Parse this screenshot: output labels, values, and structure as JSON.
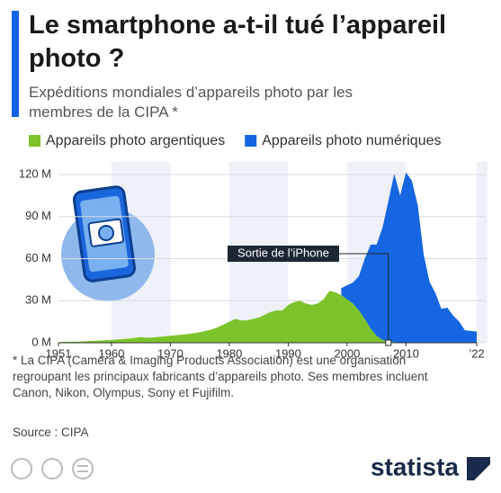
{
  "chart_data": {
    "type": "area",
    "stacked": true,
    "title": "Le smartphone a-t-il tué l’appareil photo ?",
    "subtitle": "Expéditions mondiales d’appareils photo par les membres de la CIPA *",
    "x": [
      1951,
      1952,
      1953,
      1954,
      1955,
      1956,
      1957,
      1958,
      1959,
      1960,
      1961,
      1962,
      1963,
      1964,
      1965,
      1966,
      1967,
      1968,
      1969,
      1970,
      1971,
      1972,
      1973,
      1974,
      1975,
      1976,
      1977,
      1978,
      1979,
      1980,
      1981,
      1982,
      1983,
      1984,
      1985,
      1986,
      1987,
      1988,
      1989,
      1990,
      1991,
      1992,
      1993,
      1994,
      1995,
      1996,
      1997,
      1998,
      1999,
      2000,
      2001,
      2002,
      2003,
      2004,
      2005,
      2006,
      2007,
      2008,
      2009,
      2010,
      2011,
      2012,
      2013,
      2014,
      2015,
      2016,
      2017,
      2018,
      2019,
      2020,
      2021,
      2022
    ],
    "series": [
      {
        "name": "Appareils photo argentiques",
        "color": "#7dc42c",
        "values": [
          0.5,
          0.6,
          0.7,
          0.8,
          1,
          1.2,
          1.4,
          1.6,
          1.8,
          2,
          2.3,
          2.7,
          3,
          3.5,
          4,
          3.6,
          3.8,
          4.2,
          4.6,
          5,
          5.4,
          5.8,
          6.2,
          6.8,
          7.5,
          8.5,
          9.5,
          11,
          13,
          15,
          17,
          16,
          16,
          17,
          18,
          20,
          22,
          23,
          23,
          27,
          29,
          30,
          28,
          27,
          28,
          31,
          37,
          36,
          34,
          31,
          28,
          23,
          17,
          10,
          5,
          2,
          1,
          0.5,
          0,
          0,
          0,
          0,
          0,
          0,
          0,
          0,
          0,
          0,
          0,
          0,
          0,
          0
        ]
      },
      {
        "name": "Appareils photo numériques",
        "color": "#1566e0",
        "values": [
          null,
          null,
          null,
          null,
          null,
          null,
          null,
          null,
          null,
          null,
          null,
          null,
          null,
          null,
          null,
          null,
          null,
          null,
          null,
          null,
          null,
          null,
          null,
          null,
          null,
          null,
          null,
          null,
          null,
          null,
          null,
          null,
          null,
          null,
          null,
          null,
          null,
          null,
          null,
          null,
          null,
          null,
          null,
          null,
          null,
          null,
          null,
          null,
          5,
          10,
          15,
          24.5,
          43,
          60,
          65,
          80,
          100,
          120,
          105,
          121.5,
          115.5,
          98,
          62.8,
          43.4,
          35.4,
          24.2,
          25,
          19.4,
          15.2,
          8.9,
          8.4,
          8
        ]
      }
    ],
    "xlim": [
      1951,
      2022
    ],
    "xticks": [
      1951,
      1960,
      1970,
      1980,
      1990,
      2000,
      2010,
      {
        "value": 2022,
        "label": "’22"
      }
    ],
    "ylim": [
      0,
      120
    ],
    "yticks": [
      {
        "value": 0,
        "label": "0 M"
      },
      {
        "value": 30,
        "label": "30 M"
      },
      {
        "value": 60,
        "label": "60 M"
      },
      {
        "value": 90,
        "label": "90 M"
      },
      {
        "value": 120,
        "label": "120 M"
      }
    ],
    "annotation": {
      "text": "Sortie de l’iPhone",
      "x": 2007
    },
    "note": "* La CIPA (Camera & Imaging Products Association) est une organisation regroupant les principaux fabricants d’appareils photo. Ses membres incluent Canon, Nikon, Olympus, Sony et Fujifilm.",
    "source": "Source : CIPA",
    "brand": "statista"
  }
}
